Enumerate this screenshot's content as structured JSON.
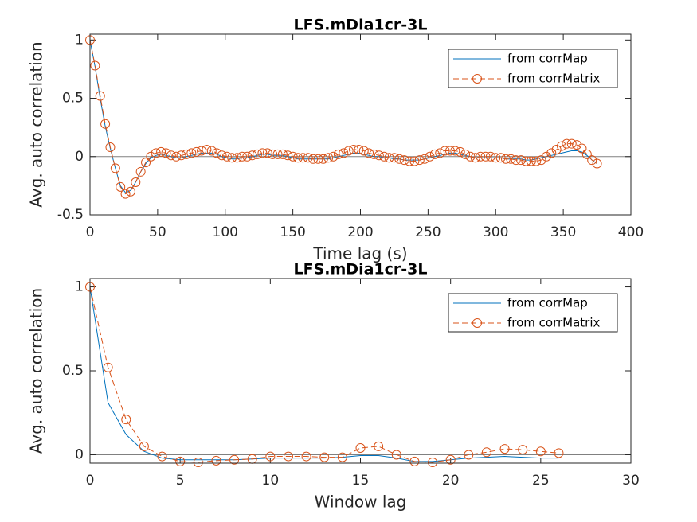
{
  "chart_data": [
    {
      "type": "line",
      "title": "LFS.mDia1cr-3L",
      "xlabel": "Time lag (s)",
      "ylabel": "Avg. auto correlation",
      "x": [
        0,
        3.75,
        7.5,
        11.25,
        15,
        18.75,
        22.5,
        26.25,
        30,
        33.75,
        37.5,
        41.25,
        45,
        48.75,
        52.5,
        56.25,
        60,
        63.75,
        67.5,
        71.25,
        75,
        78.75,
        82.5,
        86.25,
        90,
        93.75,
        97.5,
        101.25,
        105,
        108.75,
        112.5,
        116.25,
        120,
        123.75,
        127.5,
        131.25,
        135,
        138.75,
        142.5,
        146.25,
        150,
        153.75,
        157.5,
        161.25,
        165,
        168.75,
        172.5,
        176.25,
        180,
        183.75,
        187.5,
        191.25,
        195,
        198.75,
        202.5,
        206.25,
        210,
        213.75,
        217.5,
        221.25,
        225,
        228.75,
        232.5,
        236.25,
        240,
        243.75,
        247.5,
        251.25,
        255,
        258.75,
        262.5,
        266.25,
        270,
        273.75,
        277.5,
        281.25,
        285,
        288.75,
        292.5,
        296.25,
        300,
        303.75,
        307.5,
        311.25,
        315,
        318.75,
        322.5,
        326.25,
        330,
        333.75,
        337.5,
        341.25,
        345,
        348.75,
        352.5,
        356.25,
        360,
        363.75,
        367.5,
        371.25,
        375
      ],
      "series": [
        {
          "name": "from corrMap",
          "color": "#0072bd",
          "line_style": "solid",
          "marker": "none",
          "values": [
            1,
            0.77,
            0.5,
            0.26,
            0.07,
            -0.1,
            -0.25,
            -0.31,
            -0.29,
            -0.22,
            -0.13,
            -0.06,
            -0.01,
            0.01,
            0.02,
            0.01,
            0.0,
            -0.01,
            -0.01,
            0.0,
            0.01,
            0.02,
            0.03,
            0.03,
            0.03,
            0.02,
            0.0,
            -0.01,
            -0.02,
            -0.02,
            -0.01,
            -0.01,
            0.0,
            0.01,
            0.02,
            0.02,
            0.01,
            0.01,
            0.01,
            0.0,
            -0.01,
            -0.02,
            -0.02,
            -0.02,
            -0.02,
            -0.02,
            -0.02,
            -0.02,
            -0.01,
            0.0,
            0.01,
            0.02,
            0.03,
            0.03,
            0.02,
            0.01,
            0.0,
            0.0,
            -0.01,
            -0.01,
            -0.02,
            -0.02,
            -0.03,
            -0.03,
            -0.03,
            -0.03,
            -0.02,
            -0.01,
            0.0,
            0.01,
            0.02,
            0.03,
            0.03,
            0.02,
            0.01,
            0.0,
            -0.01,
            -0.01,
            -0.01,
            -0.01,
            -0.01,
            -0.01,
            -0.02,
            -0.02,
            -0.02,
            -0.02,
            -0.03,
            -0.03,
            -0.02,
            -0.01,
            0.0,
            0.01,
            0.02,
            0.03,
            0.04,
            0.05,
            0.05,
            0.04,
            0.01,
            -0.03,
            -0.06
          ]
        },
        {
          "name": "from corrMatrix",
          "color": "#d95319",
          "line_style": "dashed",
          "marker": "circle",
          "values": [
            1,
            0.78,
            0.52,
            0.28,
            0.08,
            -0.1,
            -0.26,
            -0.32,
            -0.3,
            -0.22,
            -0.13,
            -0.05,
            0.0,
            0.03,
            0.04,
            0.03,
            0.01,
            0.0,
            0.01,
            0.02,
            0.03,
            0.04,
            0.05,
            0.06,
            0.05,
            0.03,
            0.01,
            0.0,
            -0.01,
            -0.01,
            0.0,
            0.0,
            0.01,
            0.02,
            0.03,
            0.03,
            0.02,
            0.02,
            0.02,
            0.01,
            0.0,
            -0.01,
            -0.01,
            -0.01,
            -0.02,
            -0.02,
            -0.02,
            -0.01,
            0.0,
            0.02,
            0.03,
            0.05,
            0.06,
            0.06,
            0.05,
            0.03,
            0.02,
            0.01,
            0.0,
            -0.01,
            -0.01,
            -0.02,
            -0.03,
            -0.04,
            -0.04,
            -0.03,
            -0.02,
            0.0,
            0.02,
            0.03,
            0.05,
            0.05,
            0.05,
            0.04,
            0.02,
            0.0,
            -0.01,
            0.0,
            0.0,
            0.0,
            -0.01,
            -0.01,
            -0.02,
            -0.02,
            -0.03,
            -0.03,
            -0.04,
            -0.04,
            -0.04,
            -0.03,
            0.0,
            0.03,
            0.06,
            0.09,
            0.11,
            0.11,
            0.1,
            0.07,
            0.02,
            -0.03,
            -0.06
          ]
        }
      ],
      "xlim": [
        0,
        400
      ],
      "xticks": [
        0,
        50,
        100,
        150,
        200,
        250,
        300,
        350,
        400
      ],
      "ylim": [
        -0.5,
        1.05
      ],
      "yticks": [
        -0.5,
        0,
        0.5,
        1
      ],
      "reference_line": 0,
      "grid": false,
      "legend_position": "northeast"
    },
    {
      "type": "line",
      "title": "LFS.mDia1cr-3L",
      "xlabel": "Window lag",
      "ylabel": "Avg. auto correlation",
      "x": [
        0,
        1,
        2,
        3,
        4,
        5,
        6,
        7,
        8,
        9,
        10,
        11,
        12,
        13,
        14,
        15,
        16,
        17,
        18,
        19,
        20,
        21,
        22,
        23,
        24,
        25,
        26
      ],
      "series": [
        {
          "name": "from corrMap",
          "color": "#0072bd",
          "line_style": "solid",
          "marker": "none",
          "values": [
            1,
            0.31,
            0.12,
            0.02,
            -0.02,
            -0.03,
            -0.03,
            -0.03,
            -0.03,
            -0.025,
            -0.02,
            -0.02,
            -0.02,
            -0.02,
            -0.015,
            -0.005,
            -0.005,
            -0.02,
            -0.04,
            -0.04,
            -0.03,
            -0.02,
            -0.015,
            -0.01,
            -0.015,
            -0.02,
            -0.02
          ]
        },
        {
          "name": "from corrMatrix",
          "color": "#d95319",
          "line_style": "dashed",
          "marker": "circle",
          "values": [
            1,
            0.52,
            0.21,
            0.05,
            -0.01,
            -0.04,
            -0.045,
            -0.035,
            -0.03,
            -0.025,
            -0.01,
            -0.01,
            -0.01,
            -0.015,
            -0.015,
            0.04,
            0.05,
            0.0,
            -0.04,
            -0.045,
            -0.03,
            0.0,
            0.015,
            0.035,
            0.03,
            0.02,
            0.01
          ]
        }
      ],
      "xlim": [
        0,
        30
      ],
      "xticks": [
        0,
        5,
        10,
        15,
        20,
        25,
        30
      ],
      "ylim": [
        -0.05,
        1.05
      ],
      "yticks": [
        0,
        0.5,
        1
      ],
      "reference_line": 0,
      "grid": false,
      "legend_position": "northeast"
    }
  ]
}
